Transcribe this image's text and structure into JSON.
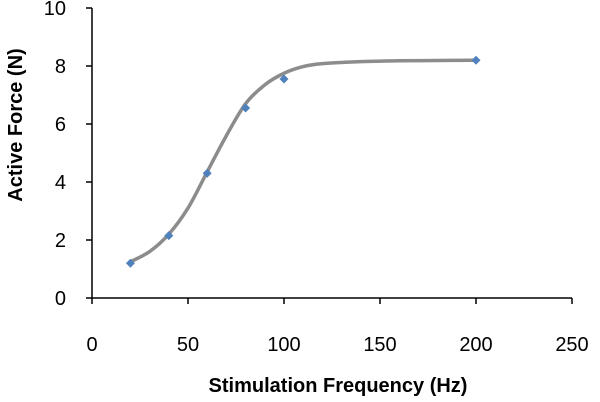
{
  "chart_data": {
    "type": "scatter",
    "title": "",
    "xlabel": "Stimulation Frequency (Hz)",
    "ylabel": "Active Force (N)",
    "xlim": [
      0,
      250
    ],
    "ylim": [
      0,
      10
    ],
    "x_ticks": [
      "0",
      "50",
      "100",
      "150",
      "200",
      "250"
    ],
    "y_ticks": [
      "0",
      "2",
      "4",
      "6",
      "8",
      "10"
    ],
    "grid": false,
    "legend": "none",
    "series": [
      {
        "x": [
          20,
          40,
          60,
          80,
          100,
          200
        ],
        "y": [
          1.2,
          2.15,
          4.3,
          6.55,
          7.55,
          8.2
        ],
        "marker": "diamond",
        "color": "#4f81bd"
      }
    ],
    "fit_curve": {
      "type": "sigmoid",
      "x": [
        20,
        30,
        40,
        50,
        60,
        70,
        80,
        90,
        100,
        110,
        120,
        140,
        160,
        180,
        200
      ],
      "y": [
        1.25,
        1.6,
        2.2,
        3.1,
        4.35,
        5.6,
        6.7,
        7.35,
        7.75,
        7.98,
        8.08,
        8.15,
        8.18,
        8.19,
        8.2
      ],
      "color": "#8c8c8c"
    },
    "axis_color": "#000000"
  }
}
